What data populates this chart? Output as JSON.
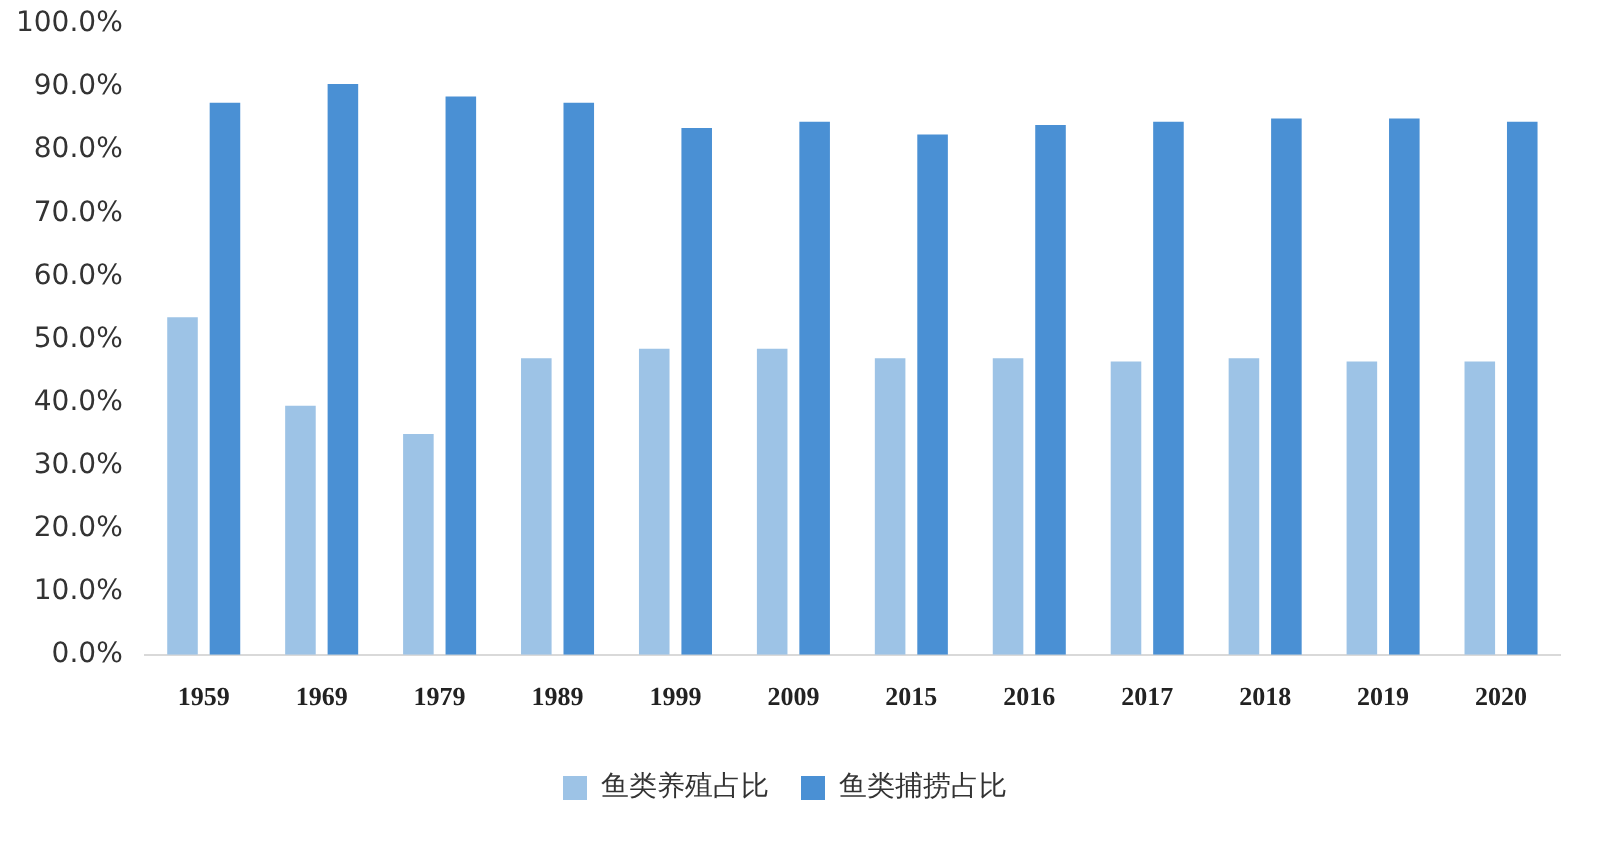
{
  "chart_data": {
    "type": "bar",
    "categories": [
      "1959",
      "1969",
      "1979",
      "1989",
      "1999",
      "2009",
      "2015",
      "2016",
      "2017",
      "2018",
      "2019",
      "2020"
    ],
    "series": [
      {
        "name": "鱼类养殖占比",
        "color": "#9dc3e6",
        "values": [
          53.5,
          39.5,
          35,
          47,
          48.5,
          48.5,
          47,
          47,
          46.5,
          47,
          46.5,
          46.5
        ]
      },
      {
        "name": "鱼类捕捞占比",
        "color": "#4a90d4",
        "values": [
          87.5,
          90.5,
          88.5,
          87.5,
          83.5,
          84.5,
          82.5,
          84,
          84.5,
          85,
          85,
          84.5
        ]
      }
    ],
    "ylim": [
      0,
      100
    ],
    "yticks": [
      {
        "value": 0,
        "label": "0.0%"
      },
      {
        "value": 10,
        "label": "10.0%"
      },
      {
        "value": 20,
        "label": "20.0%"
      },
      {
        "value": 30,
        "label": "30.0%"
      },
      {
        "value": 40,
        "label": "40.0%"
      },
      {
        "value": 50,
        "label": "50.0%"
      },
      {
        "value": 60,
        "label": "60.0%"
      },
      {
        "value": 70,
        "label": "70.0%"
      },
      {
        "value": 80,
        "label": "80.0%"
      },
      {
        "value": 90,
        "label": "90.0%"
      },
      {
        "value": 100,
        "label": "100.0%"
      }
    ],
    "grid": false,
    "legend": "bottom"
  }
}
